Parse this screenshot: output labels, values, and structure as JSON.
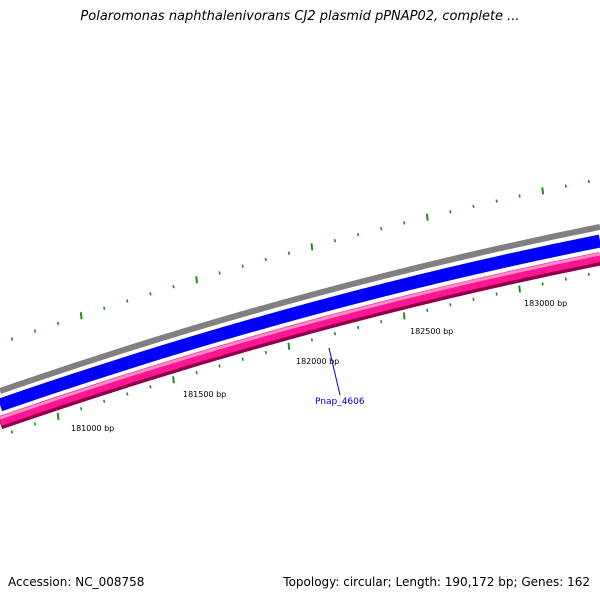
{
  "title": "Polaromonas naphthalenivorans CJ2 plasmid pPNAP02, complete ...",
  "footer": {
    "accession": "Accession: NC_008758",
    "summary": "Topology: circular; Length: 190,172 bp; Genes: 162"
  },
  "map": {
    "position_labels": [
      "181000 bp",
      "181500 bp",
      "182000 bp",
      "182500 bp",
      "183000 bp"
    ],
    "gene_label": "Pnap_4606",
    "colors": {
      "backbone": "#808080",
      "forward_track": "#0000ff",
      "reverse_track": "#ff1493",
      "reverse_track_edge": "#8b0045",
      "tick_marks": "#228b22",
      "gene_label": "#0000cc"
    }
  }
}
